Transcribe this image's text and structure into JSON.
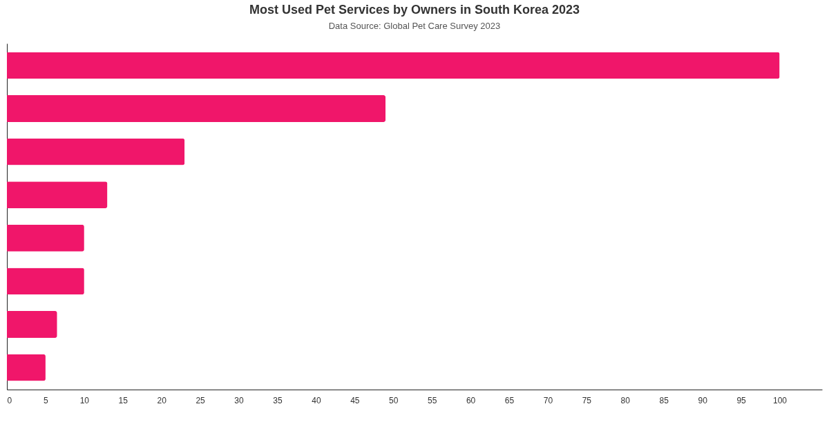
{
  "chart_data": {
    "type": "bar",
    "orientation": "horizontal",
    "title": "Most Used Pet Services by Owners in South Korea 2023",
    "subtitle": "Data Source: Global Pet Care Survey 2023",
    "categories": [
      null,
      null,
      null,
      null,
      null,
      null,
      null,
      null
    ],
    "values": [
      100,
      49,
      23,
      13,
      10,
      10,
      6.5,
      5
    ],
    "color": "#f0166a",
    "xlim": [
      0,
      105.5
    ],
    "xticks": [
      0,
      5,
      10,
      15,
      20,
      25,
      30,
      35,
      40,
      45,
      50,
      55,
      60,
      65,
      70,
      75,
      80,
      85,
      90,
      95,
      100
    ],
    "grid": false,
    "tick_labels": "x"
  }
}
